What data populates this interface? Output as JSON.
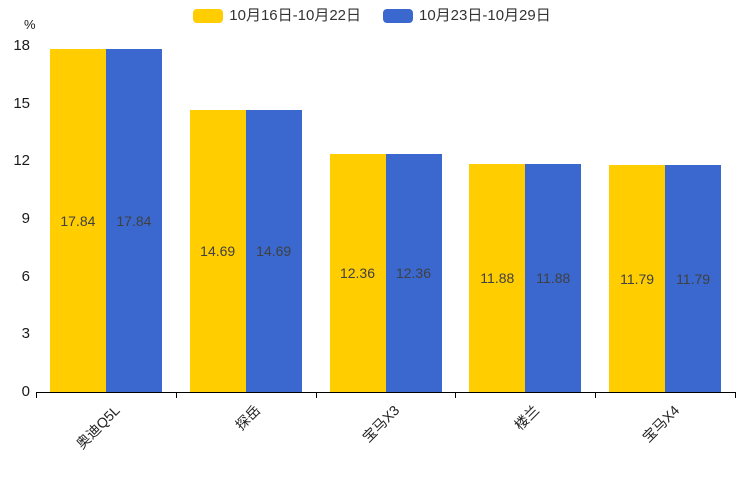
{
  "chart_data": {
    "type": "bar",
    "title": "",
    "xlabel": "",
    "ylabel": "%",
    "categories": [
      "奥迪Q5L",
      "探岳",
      "宝马X3",
      "楼兰",
      "宝马X4"
    ],
    "series": [
      {
        "name": "10月16日-10月22日",
        "color": "#FFCD00",
        "values": [
          17.84,
          14.69,
          12.36,
          11.88,
          11.79
        ]
      },
      {
        "name": "10月23日-10月29日",
        "color": "#3A68CE",
        "values": [
          17.84,
          14.69,
          12.36,
          11.88,
          11.79
        ]
      }
    ],
    "ylim": [
      0,
      18
    ],
    "yticks": [
      0,
      3,
      6,
      9,
      12,
      15,
      18
    ],
    "grid": false,
    "legend_position": "top",
    "value_label_position": "inside-center",
    "axis_color": "#000000"
  }
}
